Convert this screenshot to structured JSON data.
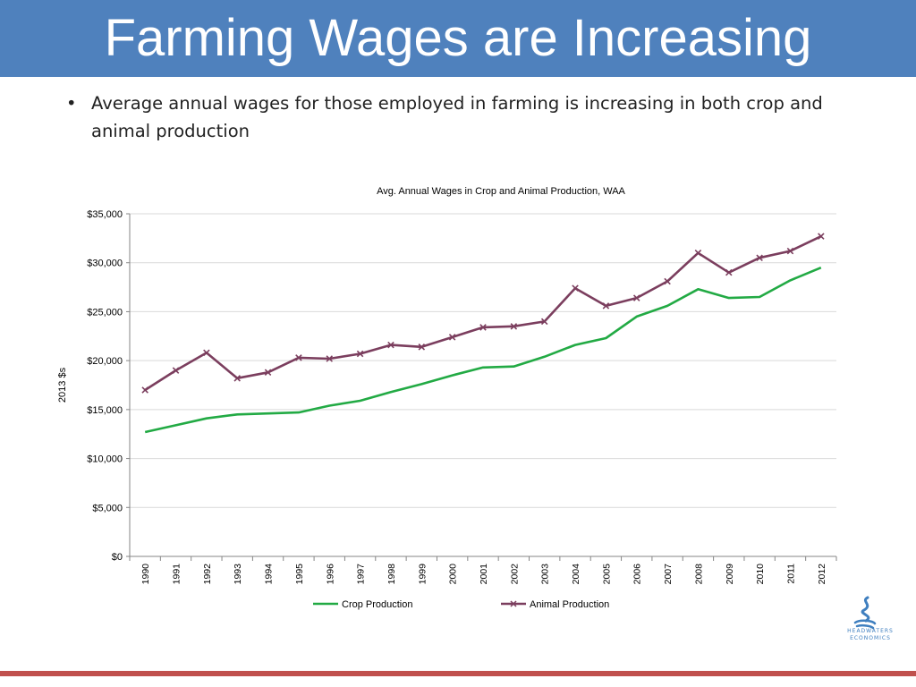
{
  "slide": {
    "title": "Farming Wages are Increasing",
    "bullet_symbol": "•",
    "bullet": "Average annual wages for those employed in farming is increasing in both crop and animal production",
    "colors": {
      "title_bar": "#4f81bd",
      "footer_line": "#c0504d"
    }
  },
  "logo": {
    "text_line1": "HEADWATERS",
    "text_line2": "ECONOMICS",
    "icon": "headwaters-swirl-icon"
  },
  "chart_data": {
    "type": "line",
    "title": "Avg. Annual Wages in Crop and Animal Production, WAA",
    "ylabel": "2013 $s",
    "xlabel": "",
    "ylim": [
      0,
      35000
    ],
    "yticks": [
      0,
      5000,
      10000,
      15000,
      20000,
      25000,
      30000,
      35000
    ],
    "ytick_labels": [
      "$0",
      "$5,000",
      "$10,000",
      "$15,000",
      "$20,000",
      "$25,000",
      "$30,000",
      "$35,000"
    ],
    "categories": [
      "1990",
      "1991",
      "1992",
      "1993",
      "1994",
      "1995",
      "1996",
      "1997",
      "1998",
      "1999",
      "2000",
      "2001",
      "2002",
      "2003",
      "2004",
      "2005",
      "2006",
      "2007",
      "2008",
      "2009",
      "2010",
      "2011",
      "2012"
    ],
    "grid": true,
    "legend": "bottom",
    "series": [
      {
        "name": "Crop Production",
        "color": "#22aa44",
        "marker": "none",
        "values": [
          12700,
          13400,
          14100,
          14500,
          14600,
          14700,
          15400,
          15900,
          16800,
          17600,
          18500,
          19300,
          19400,
          20400,
          21600,
          22300,
          24500,
          25600,
          27300,
          26400,
          26500,
          28200,
          29500
        ]
      },
      {
        "name": "Animal Production",
        "color": "#7b3e5e",
        "marker": "x",
        "values": [
          17000,
          19000,
          20800,
          18200,
          18800,
          20300,
          20200,
          20700,
          21600,
          21400,
          22400,
          23400,
          23500,
          24000,
          27400,
          25600,
          26400,
          28100,
          31000,
          29000,
          30500,
          31200,
          32700
        ]
      }
    ]
  }
}
